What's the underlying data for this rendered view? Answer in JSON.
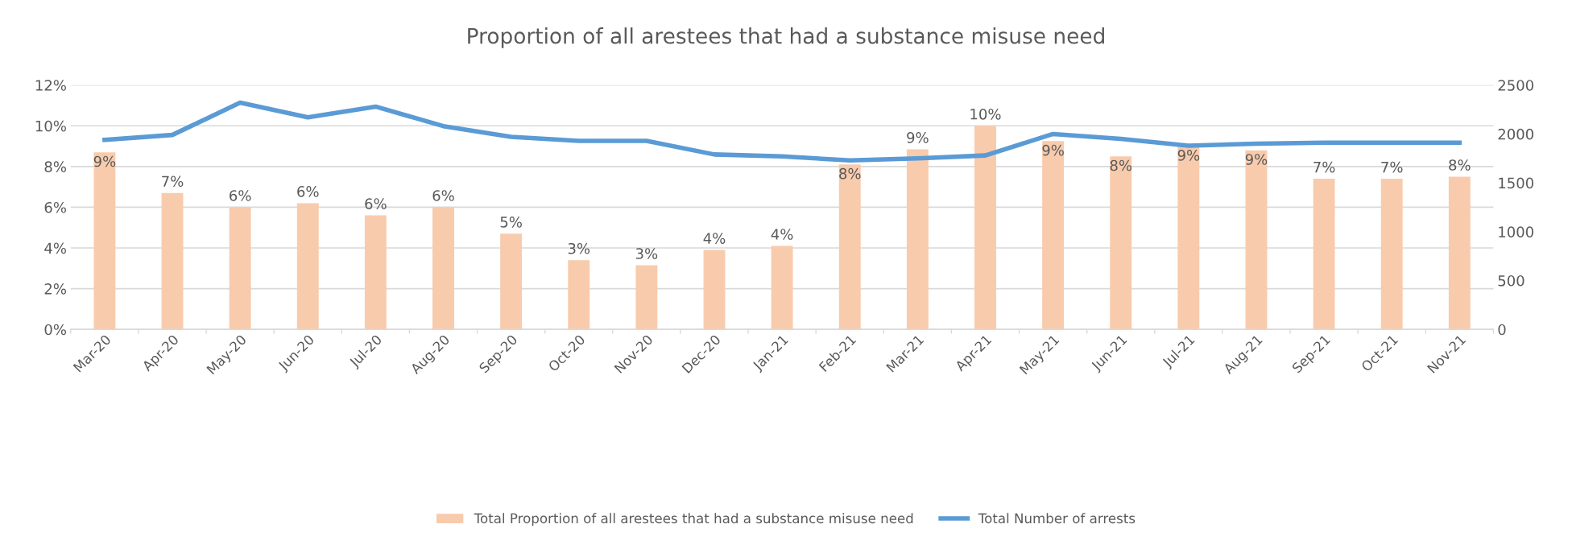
{
  "chart_data": {
    "type": "bar",
    "title": "Proportion of all arestees that had a substance misuse need",
    "categories": [
      "Mar-20",
      "Apr-20",
      "May-20",
      "Jun-20",
      "Jul-20",
      "Aug-20",
      "Sep-20",
      "Oct-20",
      "Nov-20",
      "Dec-20",
      "Jan-21",
      "Feb-21",
      "Mar-21",
      "Apr-21",
      "May-21",
      "Jun-21",
      "Jul-21",
      "Aug-21",
      "Sep-21",
      "Oct-21",
      "Nov-21"
    ],
    "series": [
      {
        "name": "Total Proportion of all arestees that had a substance misuse need",
        "color": "#f8cbad",
        "values": [
          8.7,
          6.7,
          6.0,
          6.2,
          5.6,
          6.0,
          4.7,
          3.4,
          3.15,
          3.9,
          4.1,
          8.1,
          8.85,
          10.0,
          9.25,
          8.5,
          9.0,
          8.8,
          7.4,
          7.4,
          7.5
        ],
        "value_labels": [
          "9%",
          "7%",
          "6%",
          "6%",
          "6%",
          "6%",
          "5%",
          "3%",
          "3%",
          "4%",
          "4%",
          "8%",
          "9%",
          "10%",
          "9%",
          "8%",
          "9%",
          "9%",
          "7%",
          "7%",
          "8%"
        ]
      },
      {
        "name": "Total Number of arrests",
        "type": "line",
        "axis": "y2",
        "color": "#5b9bd5",
        "values": [
          1940,
          1990,
          2320,
          2170,
          2280,
          2080,
          1970,
          1930,
          1930,
          1790,
          1770,
          1730,
          1750,
          1780,
          2000,
          1950,
          1880,
          1900,
          1910,
          1910,
          1910
        ]
      }
    ],
    "ylim": [
      0,
      12
    ],
    "yticks": [
      {
        "value": 0,
        "label": "0%"
      },
      {
        "value": 2,
        "label": "2%"
      },
      {
        "value": 4,
        "label": "4%"
      },
      {
        "value": 6,
        "label": "6%"
      },
      {
        "value": 8,
        "label": "8%"
      },
      {
        "value": 10,
        "label": "10%"
      },
      {
        "value": 12,
        "label": "12%"
      }
    ],
    "y2lim": [
      0,
      2500
    ],
    "y2ticks": [
      0,
      500,
      1000,
      1500,
      2000,
      2500
    ],
    "grid": "y",
    "legend": "bottom",
    "marker": "none",
    "line_style": "solid"
  }
}
